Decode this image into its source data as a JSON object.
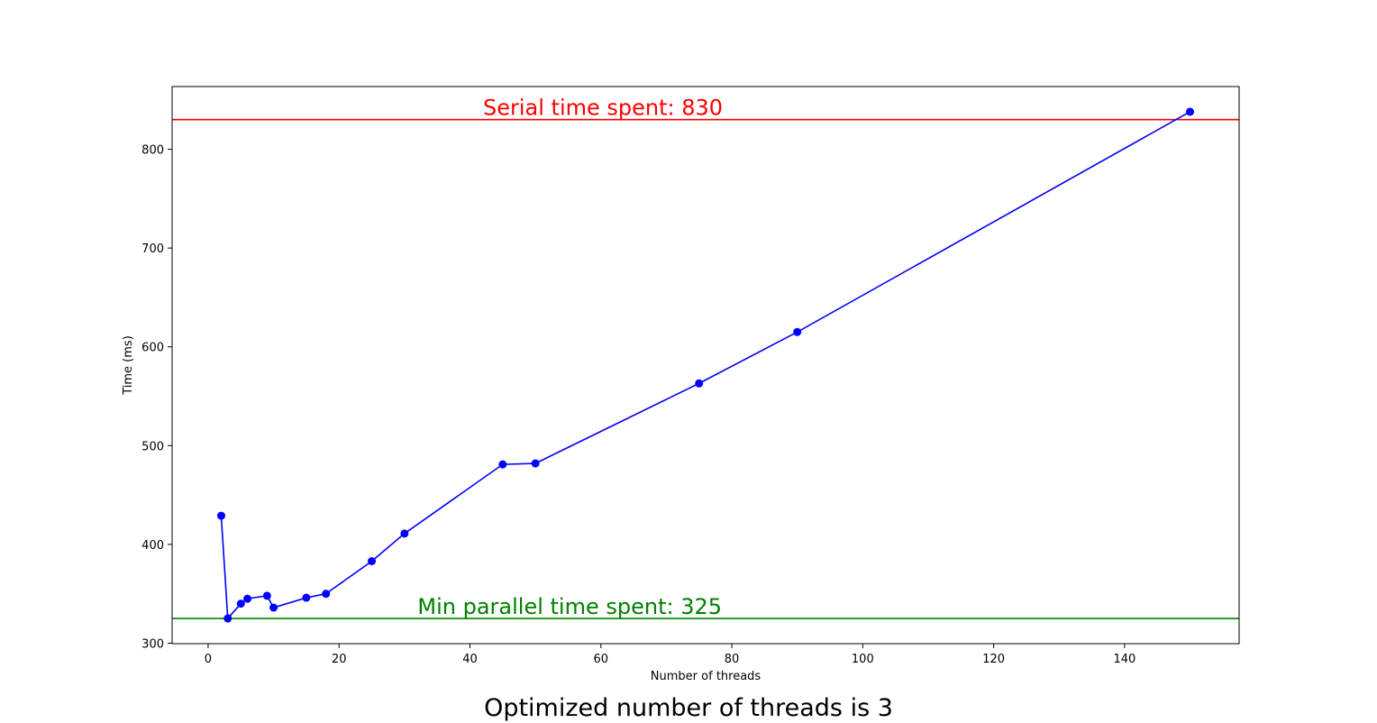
{
  "chart_data": {
    "type": "line",
    "title": "",
    "caption": "Optimized number of threads is 3",
    "xlabel": "Number of threads",
    "ylabel": "Time (ms)",
    "xlim": [
      -5.5,
      157.5
    ],
    "ylim": [
      299.5,
      863.5
    ],
    "xticks": [
      0,
      20,
      40,
      60,
      80,
      100,
      120,
      140
    ],
    "yticks": [
      300,
      400,
      500,
      600,
      700,
      800
    ],
    "grid": false,
    "series": [
      {
        "color": "#0000ff",
        "marker": "circle",
        "x": [
          2,
          3,
          5,
          6,
          9,
          10,
          15,
          18,
          25,
          30,
          45,
          50,
          75,
          90,
          150
        ],
        "y": [
          429,
          325,
          340,
          345,
          348,
          336,
          346,
          350,
          383,
          411,
          481,
          482,
          563,
          615,
          838
        ]
      }
    ],
    "reference_lines": [
      {
        "y": 830,
        "color": "#ff0000",
        "label": "Serial time spent: 830",
        "label_x": 42
      },
      {
        "y": 325,
        "color": "#008000",
        "label": "Min parallel time spent: 325",
        "label_x": 32
      }
    ]
  }
}
